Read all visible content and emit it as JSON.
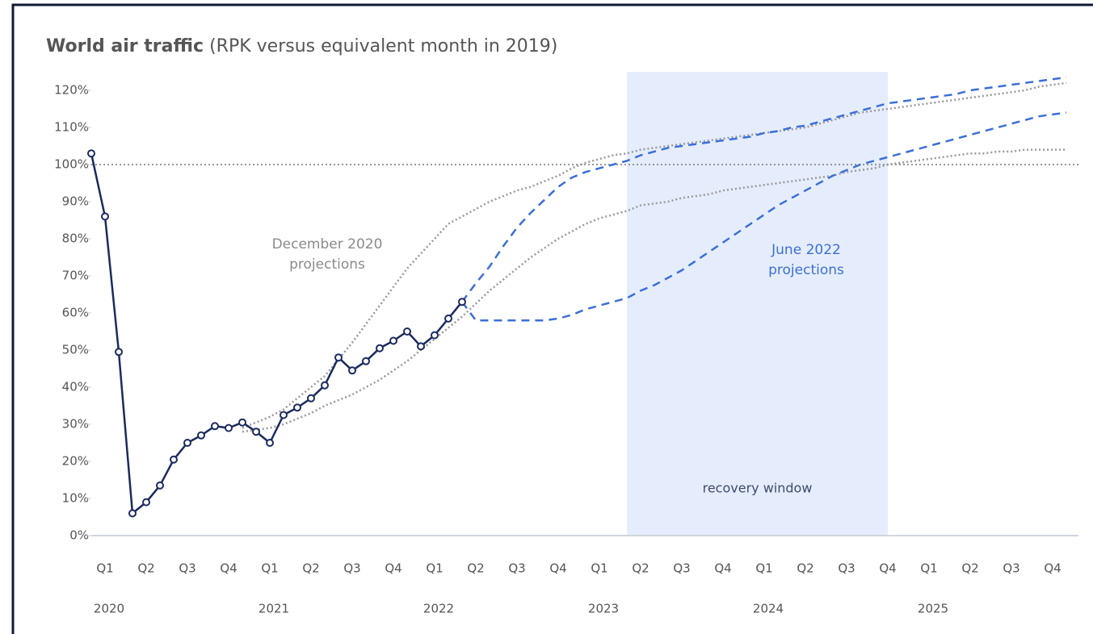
{
  "chart_data": {
    "type": "line",
    "title": "World air traffic",
    "subtitle": "(RPK versus equivalent month in 2019)",
    "categories": [
      null,
      "Q1",
      null,
      null,
      "Q2",
      null,
      null,
      "Q3",
      null,
      null,
      "Q4",
      null,
      null,
      "Q1",
      null,
      null,
      "Q2",
      null,
      null,
      "Q3",
      null,
      null,
      "Q4",
      null,
      null,
      "Q1",
      null,
      null,
      "Q2",
      null,
      null,
      "Q3",
      null,
      null,
      "Q4",
      null,
      null,
      "Q1",
      null,
      null,
      "Q2",
      null,
      null,
      "Q3",
      null,
      null,
      "Q4",
      null,
      null,
      "Q1",
      null,
      null,
      "Q2",
      null,
      null,
      "Q3",
      null,
      null,
      "Q4",
      null,
      null,
      "Q1",
      null,
      null,
      "Q2",
      null,
      null,
      "Q3",
      null,
      null,
      "Q4",
      null
    ],
    "years": [
      null,
      "2020",
      null,
      null,
      null,
      null,
      null,
      null,
      null,
      null,
      null,
      null,
      null,
      "2021",
      null,
      null,
      null,
      null,
      null,
      null,
      null,
      null,
      null,
      null,
      null,
      "2022",
      null,
      null,
      null,
      null,
      null,
      null,
      null,
      null,
      null,
      null,
      null,
      "2023",
      null,
      null,
      null,
      null,
      null,
      null,
      null,
      null,
      null,
      null,
      null,
      "2024",
      null,
      null,
      null,
      null,
      null,
      null,
      null,
      null,
      null,
      null,
      null,
      "2025",
      null,
      null,
      null,
      null,
      null,
      null,
      null,
      null,
      null,
      null
    ],
    "ylim": [
      0,
      125
    ],
    "yticks": [
      {
        "value": 0,
        "label": "0%"
      },
      {
        "value": 10,
        "label": "10%"
      },
      {
        "value": 20,
        "label": "20%"
      },
      {
        "value": 30,
        "label": "30%"
      },
      {
        "value": 40,
        "label": "40%"
      },
      {
        "value": 50,
        "label": "50%"
      },
      {
        "value": 60,
        "label": "60%"
      },
      {
        "value": 70,
        "label": "70%"
      },
      {
        "value": 80,
        "label": "80%"
      },
      {
        "value": 90,
        "label": "90%"
      },
      {
        "value": 100,
        "label": "100%"
      },
      {
        "value": 110,
        "label": "110%"
      },
      {
        "value": 120,
        "label": "120%"
      }
    ],
    "reference_line": 100,
    "shaded_region": {
      "from": 39,
      "to": 58,
      "label": "recovery window",
      "color": "#e5edfc"
    },
    "annotations": [
      {
        "lines": [
          "December 2020",
          "projections"
        ],
        "color": "#8a8a8a"
      },
      {
        "lines": [
          "June 2022",
          "projections"
        ],
        "color": "#3b6fd6"
      }
    ],
    "series": [
      {
        "color": "#999999",
        "style": "dotted",
        "values": [
          null,
          null,
          null,
          null,
          null,
          null,
          null,
          null,
          null,
          null,
          null,
          29,
          30.5,
          32,
          34,
          37,
          40,
          43,
          47.5,
          52,
          57,
          62,
          67,
          72,
          76,
          80,
          84,
          86,
          88,
          90,
          91.5,
          93,
          94,
          95.5,
          97,
          99,
          100.5,
          101.5,
          102.5,
          103,
          104,
          104.5,
          105,
          105.5,
          106,
          106.5,
          107,
          107.5,
          108,
          108.5,
          109,
          109.5,
          110,
          111,
          112,
          113,
          114,
          114.5,
          115,
          115.5,
          116,
          116.5,
          117,
          117.5,
          118,
          118.5,
          119,
          119.5,
          120,
          121,
          121.5,
          122
        ]
      },
      {
        "color": "#999999",
        "style": "dotted",
        "values": [
          null,
          null,
          null,
          null,
          null,
          null,
          null,
          null,
          null,
          null,
          null,
          28,
          28.5,
          29,
          30,
          31.5,
          33,
          35,
          36.5,
          38,
          40,
          42,
          44.5,
          47,
          50,
          53,
          56,
          59,
          62.5,
          66,
          69,
          72,
          75,
          77.5,
          80,
          82,
          84,
          85.5,
          86.5,
          87.5,
          89,
          89.5,
          90,
          91,
          91.5,
          92,
          93,
          93.5,
          94,
          94.5,
          95,
          95.5,
          96,
          96.5,
          97,
          98,
          98.5,
          99,
          100,
          100.5,
          101,
          101.5,
          102,
          102.5,
          103,
          103,
          103.5,
          103.5,
          104,
          104,
          104,
          104
        ]
      },
      {
        "color": "#3b6fd6",
        "style": "dashed",
        "values": [
          null,
          null,
          null,
          null,
          null,
          null,
          null,
          null,
          null,
          null,
          null,
          null,
          null,
          null,
          null,
          null,
          null,
          null,
          null,
          null,
          null,
          null,
          null,
          null,
          null,
          null,
          null,
          63,
          68,
          72.5,
          78,
          83,
          87,
          90.5,
          94,
          96.5,
          98,
          99,
          100,
          101,
          102.5,
          103.5,
          104.5,
          105,
          105.5,
          106,
          106.5,
          107,
          107.5,
          108.5,
          109,
          110,
          110.5,
          111.5,
          112.5,
          113.5,
          114.5,
          115.5,
          116.5,
          117,
          117.5,
          118,
          118.5,
          119,
          120,
          120.5,
          121,
          121.5,
          122,
          122.5,
          123,
          123.5
        ]
      },
      {
        "color": "#3b6fd6",
        "style": "dashed",
        "values": [
          null,
          null,
          null,
          null,
          null,
          null,
          null,
          null,
          null,
          null,
          null,
          null,
          null,
          null,
          null,
          null,
          null,
          null,
          null,
          null,
          null,
          null,
          null,
          null,
          null,
          null,
          null,
          63,
          58,
          58,
          58,
          58,
          58,
          58,
          58.5,
          59.5,
          61,
          62,
          63,
          64,
          66,
          67.5,
          69.5,
          71.5,
          74,
          76.5,
          79,
          81.5,
          84,
          86.5,
          89,
          91,
          93,
          95,
          97,
          98.5,
          100,
          101,
          102,
          103,
          104,
          105,
          106,
          107,
          108,
          109,
          110,
          111,
          112,
          113,
          113.5,
          114
        ]
      },
      {
        "color": "#1b2b5e",
        "style": "solid",
        "markers": true,
        "values": [
          103,
          86,
          49.5,
          6,
          9,
          13.5,
          20.5,
          25,
          27,
          29.5,
          29,
          30.5,
          28,
          25,
          32.5,
          34.5,
          37,
          40.5,
          48,
          44.5,
          47,
          50.5,
          52.5,
          55,
          51,
          54,
          58.5,
          63,
          null,
          null,
          null,
          null,
          null,
          null,
          null,
          null,
          null,
          null,
          null,
          null,
          null,
          null,
          null,
          null,
          null,
          null,
          null,
          null,
          null,
          null,
          null,
          null,
          null,
          null,
          null,
          null,
          null,
          null,
          null,
          null,
          null,
          null,
          null,
          null,
          null,
          null,
          null,
          null,
          null,
          null,
          null,
          null
        ]
      }
    ]
  }
}
